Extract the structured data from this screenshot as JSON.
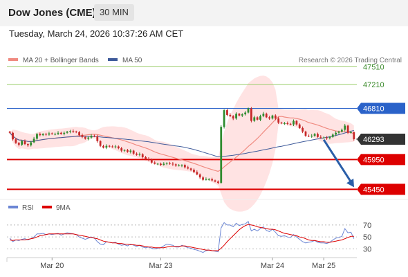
{
  "header": {
    "title": "Dow Jones (CME)",
    "timeframe": "30 MIN",
    "datetime": "Tuesday, March 24, 2026 10:37:26 AM CET"
  },
  "colors": {
    "candle_up": "#2e8b2e",
    "candle_down": "#c62828",
    "ma20": "#f08a80",
    "bollinger_fill": "#ffd9d9",
    "ma50": "#3e5a9a",
    "resistance": "#9acd6a",
    "pivot": "#2a62c9",
    "support": "#dd0000",
    "rsi": "#6b86d4",
    "rsi_ma": "#dd0000",
    "last_price": "#333333",
    "arrow": "#2a5ea8"
  },
  "chart_data": [
    {
      "type": "candlestick",
      "legend": [
        {
          "label": "MA 20 + Bollinger Bands",
          "color": "#f08a80"
        },
        {
          "label": "MA 50",
          "color": "#3e5a9a"
        }
      ],
      "legend_position": "top-left",
      "source": "Research © 2026 Trading Central",
      "ylim": [
        45350,
        47700
      ],
      "x_ticks": [
        {
          "label": "Mar 20",
          "index": 14
        },
        {
          "label": "Mar 23",
          "index": 50
        },
        {
          "label": "Mar 24",
          "index": 87
        },
        {
          "label": "Mar 25",
          "index": 104
        }
      ],
      "levels": [
        {
          "value": 47510,
          "label": "47510",
          "kind": "resistance"
        },
        {
          "value": 47210,
          "label": "47210",
          "kind": "resistance"
        },
        {
          "value": 46810,
          "label": "46810",
          "kind": "pivot"
        },
        {
          "value": 45950,
          "label": "45950",
          "kind": "support"
        },
        {
          "value": 45450,
          "label": "45450",
          "kind": "support"
        }
      ],
      "last_price": {
        "value": 46293,
        "label": "46293"
      },
      "projection": {
        "from_index": 104,
        "from_value": 46330,
        "to_value": 45450
      },
      "closes": [
        46400,
        46290,
        46230,
        46200,
        46260,
        46210,
        46190,
        46240,
        46300,
        46380,
        46360,
        46380,
        46370,
        46390,
        46380,
        46380,
        46400,
        46380,
        46400,
        46420,
        46430,
        46420,
        46410,
        46360,
        46330,
        46300,
        46320,
        46350,
        46340,
        46260,
        46180,
        46150,
        46180,
        46170,
        46160,
        46170,
        46140,
        46100,
        46110,
        46080,
        46100,
        46050,
        46030,
        46040,
        45990,
        45960,
        45950,
        45900,
        45880,
        45880,
        45860,
        45880,
        45890,
        45880,
        45870,
        45850,
        45850,
        45860,
        45820,
        45800,
        45780,
        45740,
        45700,
        45650,
        45610,
        45620,
        45620,
        45600,
        45580,
        45560,
        46500,
        46780,
        46700,
        46680,
        46640,
        46720,
        46690,
        46710,
        46740,
        46810,
        46600,
        46660,
        46620,
        46680,
        46720,
        46660,
        46640,
        46690,
        46640,
        46570,
        46560,
        46560,
        46550,
        46540,
        46600,
        46540,
        46480,
        46420,
        46350,
        46340,
        46350,
        46380,
        46330,
        46320,
        46320,
        46310,
        46330,
        46370,
        46400,
        46420,
        46450,
        46520,
        46400,
        46410,
        46293
      ]
    },
    {
      "type": "line",
      "legend": [
        {
          "label": "RSI",
          "color": "#6b86d4"
        },
        {
          "label": "9MA",
          "color": "#dd0000"
        }
      ],
      "ylim": [
        20,
        85
      ],
      "y_ticks": [
        70,
        50,
        30
      ],
      "rsi": [
        48,
        42,
        45,
        44,
        46,
        47,
        45,
        47,
        50,
        55,
        55,
        56,
        54,
        55,
        54,
        55,
        56,
        53,
        55,
        57,
        56,
        55,
        54,
        50,
        48,
        46,
        48,
        50,
        48,
        42,
        38,
        37,
        42,
        41,
        40,
        41,
        38,
        36,
        37,
        35,
        38,
        36,
        34,
        36,
        33,
        32,
        33,
        31,
        30,
        31,
        32,
        35,
        38,
        37,
        36,
        33,
        33,
        36,
        34,
        32,
        31,
        29,
        28,
        26,
        24,
        27,
        28,
        27,
        26,
        25,
        65,
        74,
        70,
        70,
        67,
        73,
        69,
        71,
        72,
        76,
        60,
        63,
        60,
        64,
        67,
        61,
        59,
        63,
        58,
        52,
        51,
        52,
        50,
        49,
        54,
        50,
        46,
        42,
        40,
        41,
        42,
        44,
        41,
        40,
        40,
        39,
        41,
        45,
        48,
        49,
        51,
        64,
        57,
        58,
        47
      ],
      "rsi_ma": [
        45,
        44,
        45,
        45,
        45,
        45,
        46,
        47,
        48,
        50,
        52,
        53,
        54,
        55,
        55,
        55,
        55,
        55,
        55,
        55,
        55,
        55,
        54,
        53,
        52,
        51,
        50,
        49,
        48,
        47,
        45,
        43,
        42,
        41,
        40,
        40,
        39,
        39,
        38,
        38,
        37,
        37,
        36,
        36,
        35,
        34,
        33,
        33,
        32,
        32,
        32,
        32,
        33,
        34,
        34,
        34,
        34,
        35,
        35,
        34,
        33,
        32,
        31,
        30,
        29,
        28,
        28,
        27,
        27,
        27,
        31,
        36,
        42,
        47,
        52,
        57,
        62,
        66,
        69,
        71,
        70,
        69,
        67,
        66,
        65,
        64,
        63,
        63,
        62,
        60,
        58,
        56,
        55,
        54,
        53,
        52,
        50,
        49,
        47,
        45,
        44,
        44,
        43,
        42,
        42,
        41,
        41,
        42,
        43,
        44,
        45,
        47,
        49,
        51,
        51
      ]
    }
  ]
}
